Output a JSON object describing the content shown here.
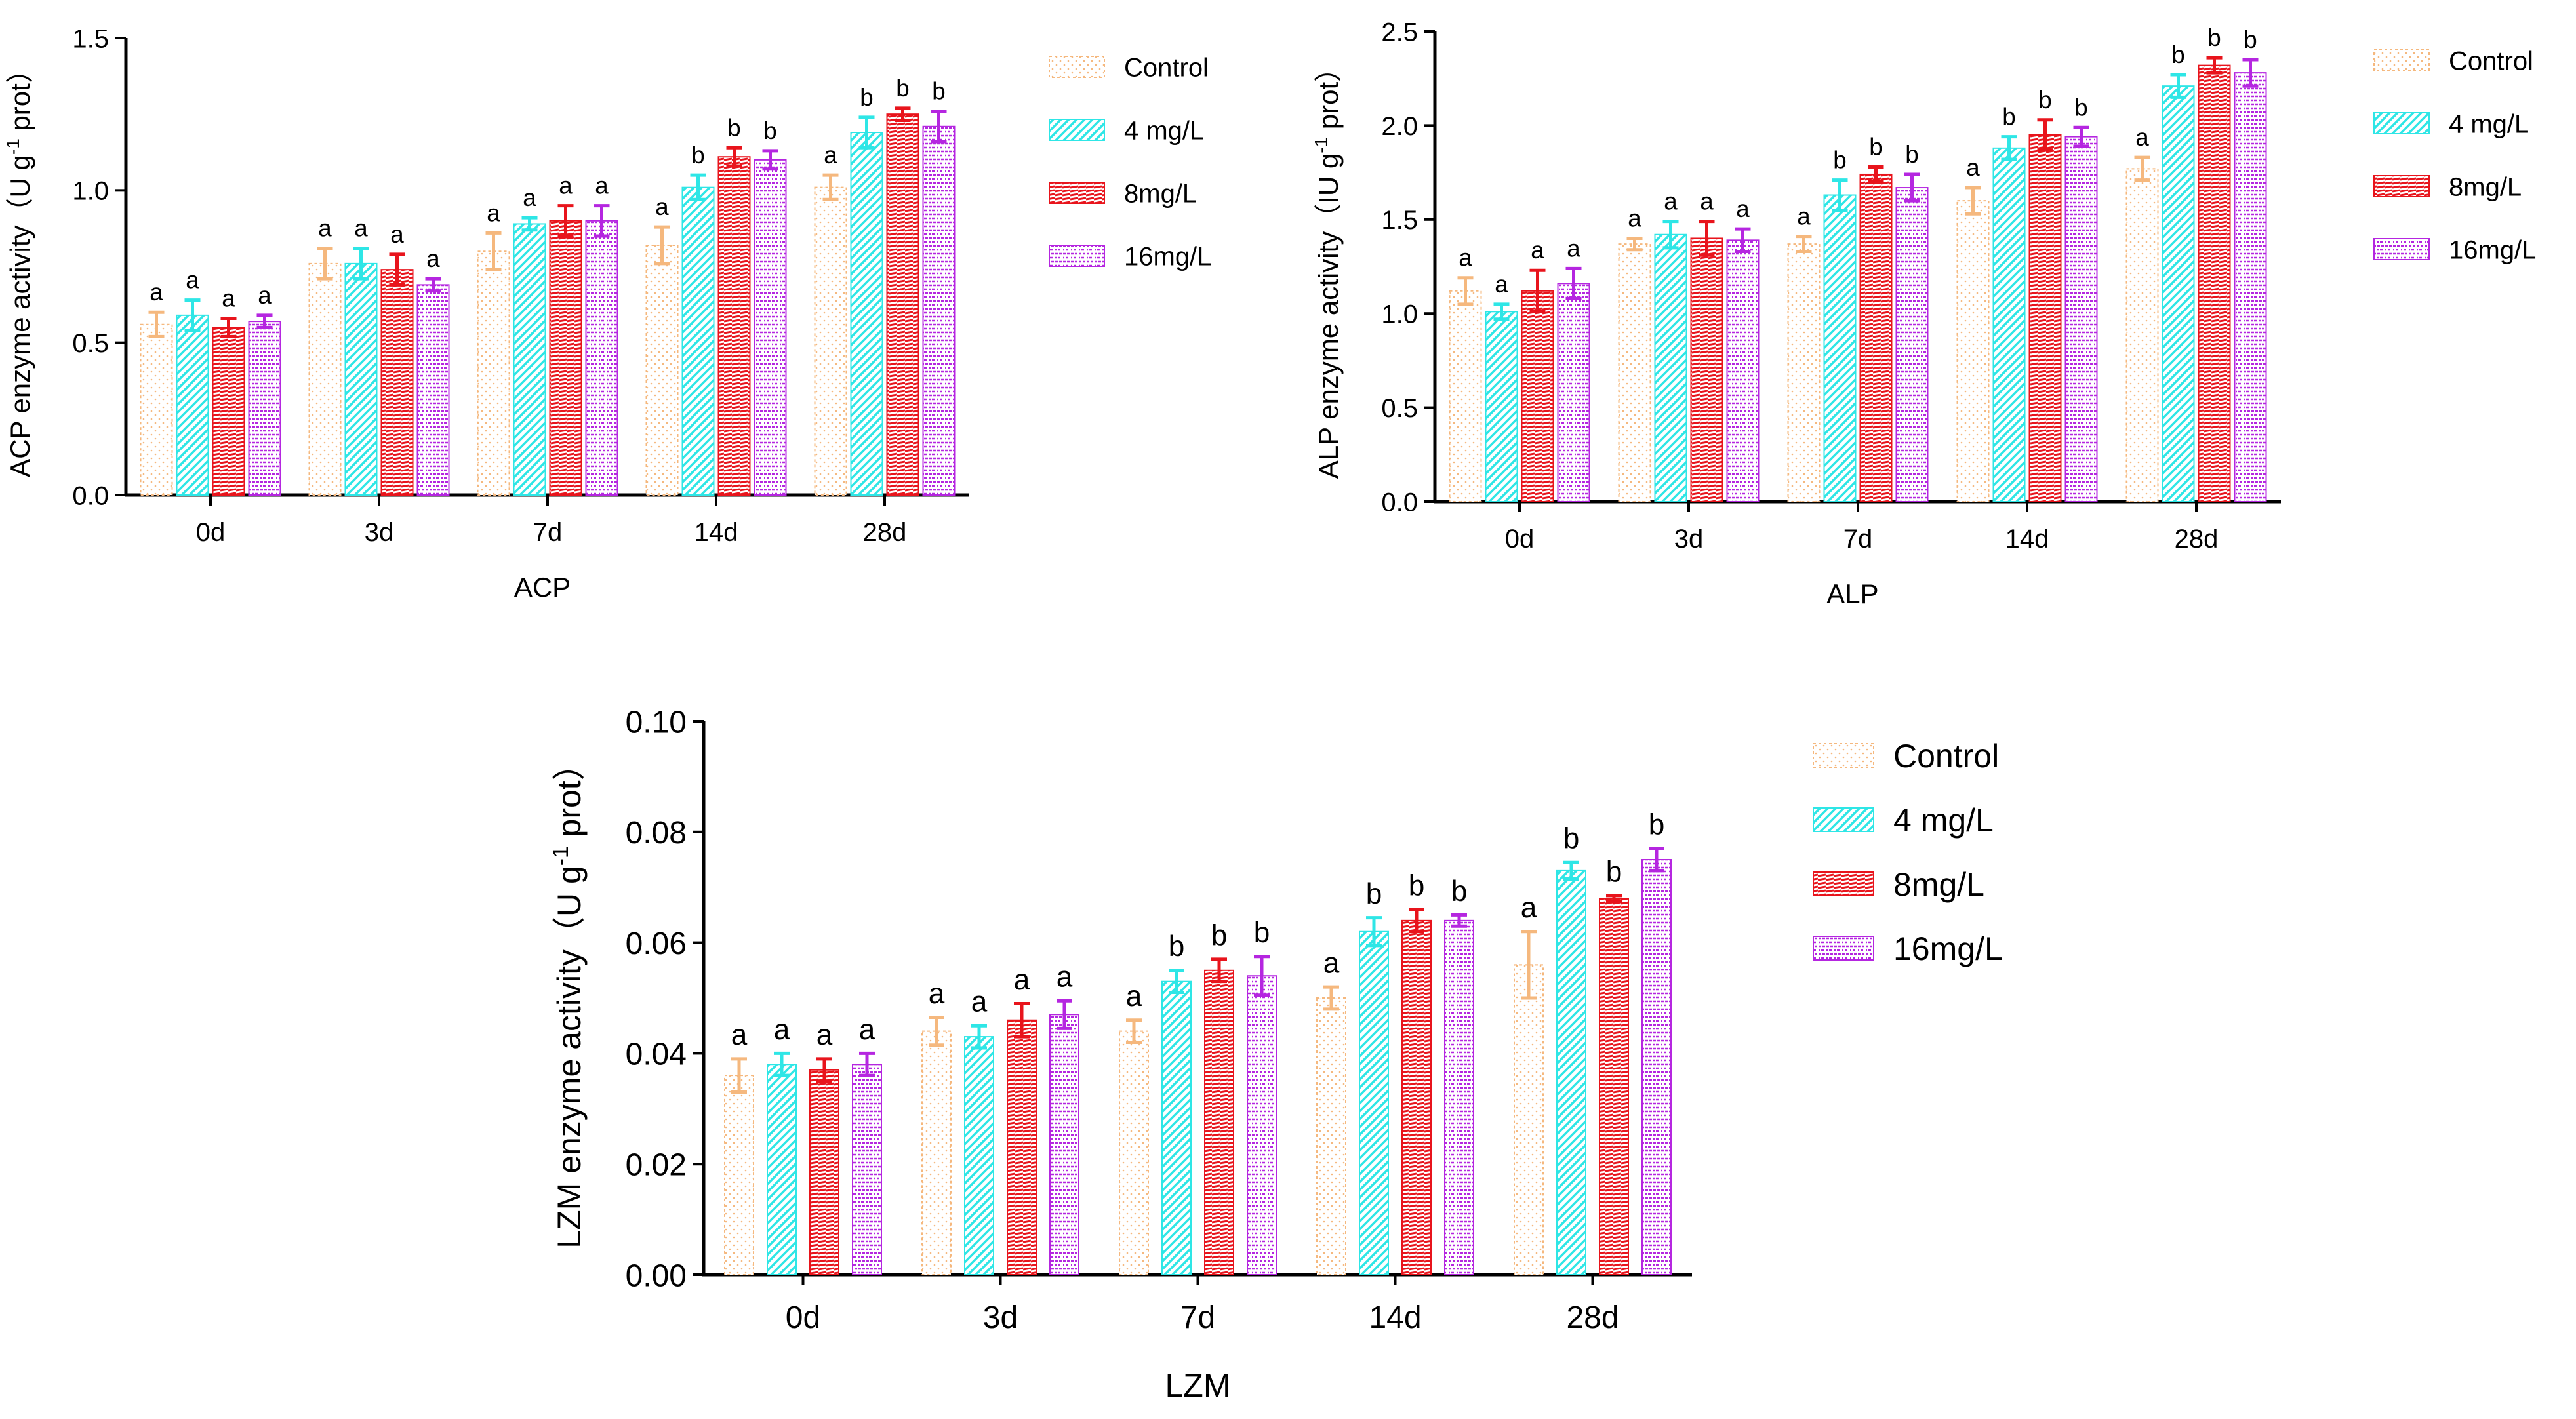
{
  "colors": {
    "Control": "#F5B87E",
    "4 mg/L": "#2EE6E6",
    "8mg/L": "#E8141C",
    "16mg/L": "#B526E0",
    "axis": "#000000"
  },
  "chart_data": [
    {
      "type": "bar",
      "id": "acp",
      "title": "",
      "xlabel": "ACP",
      "ylabel_prefix": "ACP enzyme activity（U g",
      "ylabel_sup": "-1",
      "ylabel_suffix": " prot）",
      "categories": [
        "0d",
        "3d",
        "7d",
        "14d",
        "28d"
      ],
      "ylim": [
        0,
        1.5
      ],
      "yticks": [
        "0.0",
        "0.5",
        "1.0",
        "1.5"
      ],
      "ytick_values": [
        0,
        0.5,
        1.0,
        1.5
      ],
      "series": [
        {
          "name": "Control",
          "values": [
            0.56,
            0.76,
            0.8,
            0.82,
            1.01
          ],
          "errors": [
            0.04,
            0.05,
            0.06,
            0.06,
            0.04
          ],
          "letters": [
            "a",
            "a",
            "a",
            "a",
            "a"
          ]
        },
        {
          "name": "4 mg/L",
          "values": [
            0.59,
            0.76,
            0.89,
            1.01,
            1.19
          ],
          "errors": [
            0.05,
            0.05,
            0.02,
            0.04,
            0.05
          ],
          "letters": [
            "a",
            "a",
            "a",
            "b",
            "b"
          ]
        },
        {
          "name": "8mg/L",
          "values": [
            0.55,
            0.74,
            0.9,
            1.11,
            1.25
          ],
          "errors": [
            0.03,
            0.05,
            0.05,
            0.03,
            0.02
          ],
          "letters": [
            "a",
            "a",
            "a",
            "b",
            "b"
          ]
        },
        {
          "name": "16mg/L",
          "values": [
            0.57,
            0.69,
            0.9,
            1.1,
            1.21
          ],
          "errors": [
            0.02,
            0.02,
            0.05,
            0.03,
            0.05
          ],
          "letters": [
            "a",
            "a",
            "a",
            "b",
            "b"
          ]
        }
      ]
    },
    {
      "type": "bar",
      "id": "alp",
      "title": "",
      "xlabel": "ALP",
      "ylabel_prefix": "ALP enzyme activity（IU g",
      "ylabel_sup": "-1",
      "ylabel_suffix": " prot）",
      "categories": [
        "0d",
        "3d",
        "7d",
        "14d",
        "28d"
      ],
      "ylim": [
        0,
        2.5
      ],
      "yticks": [
        "0.0",
        "0.5",
        "1.0",
        "1.5",
        "2.0",
        "2.5"
      ],
      "ytick_values": [
        0,
        0.5,
        1.0,
        1.5,
        2.0,
        2.5
      ],
      "series": [
        {
          "name": "Control",
          "values": [
            1.12,
            1.37,
            1.37,
            1.6,
            1.77
          ],
          "errors": [
            0.07,
            0.03,
            0.04,
            0.07,
            0.06
          ],
          "letters": [
            "a",
            "a",
            "a",
            "a",
            "a"
          ]
        },
        {
          "name": "4 mg/L",
          "values": [
            1.01,
            1.42,
            1.63,
            1.88,
            2.21
          ],
          "errors": [
            0.04,
            0.07,
            0.08,
            0.06,
            0.06
          ],
          "letters": [
            "a",
            "a",
            "b",
            "b",
            "b"
          ]
        },
        {
          "name": "8mg/L",
          "values": [
            1.12,
            1.4,
            1.74,
            1.95,
            2.32
          ],
          "errors": [
            0.11,
            0.09,
            0.04,
            0.08,
            0.04
          ],
          "letters": [
            "a",
            "a",
            "b",
            "b",
            "b"
          ]
        },
        {
          "name": "16mg/L",
          "values": [
            1.16,
            1.39,
            1.67,
            1.94,
            2.28
          ],
          "errors": [
            0.08,
            0.06,
            0.07,
            0.05,
            0.07
          ],
          "letters": [
            "a",
            "a",
            "b",
            "b",
            "b"
          ]
        }
      ]
    },
    {
      "type": "bar",
      "id": "lzm",
      "title": "",
      "xlabel": "LZM",
      "ylabel_prefix": "LZM enzyme activity（U g",
      "ylabel_sup": "-1",
      "ylabel_suffix": " prot）",
      "categories": [
        "0d",
        "3d",
        "7d",
        "14d",
        "28d"
      ],
      "ylim": [
        0,
        0.1
      ],
      "yticks": [
        "0.00",
        "0.02",
        "0.04",
        "0.06",
        "0.08",
        "0.10"
      ],
      "ytick_values": [
        0,
        0.02,
        0.04,
        0.06,
        0.08,
        0.1
      ],
      "series": [
        {
          "name": "Control",
          "values": [
            0.036,
            0.044,
            0.044,
            0.05,
            0.056
          ],
          "errors": [
            0.003,
            0.0025,
            0.002,
            0.002,
            0.006
          ],
          "letters": [
            "a",
            "a",
            "a",
            "a",
            "a"
          ]
        },
        {
          "name": "4 mg/L",
          "values": [
            0.038,
            0.043,
            0.053,
            0.062,
            0.073
          ],
          "errors": [
            0.002,
            0.002,
            0.002,
            0.0025,
            0.0015
          ],
          "letters": [
            "a",
            "a",
            "b",
            "b",
            "b"
          ]
        },
        {
          "name": "8mg/L",
          "values": [
            0.037,
            0.046,
            0.055,
            0.064,
            0.068
          ],
          "errors": [
            0.002,
            0.003,
            0.002,
            0.002,
            0.0005
          ],
          "letters": [
            "a",
            "a",
            "b",
            "b",
            "b"
          ]
        },
        {
          "name": "16mg/L",
          "values": [
            0.038,
            0.047,
            0.054,
            0.064,
            0.075
          ],
          "errors": [
            0.002,
            0.0025,
            0.0035,
            0.001,
            0.002
          ],
          "letters": [
            "a",
            "a",
            "b",
            "b",
            "b"
          ]
        }
      ]
    }
  ]
}
